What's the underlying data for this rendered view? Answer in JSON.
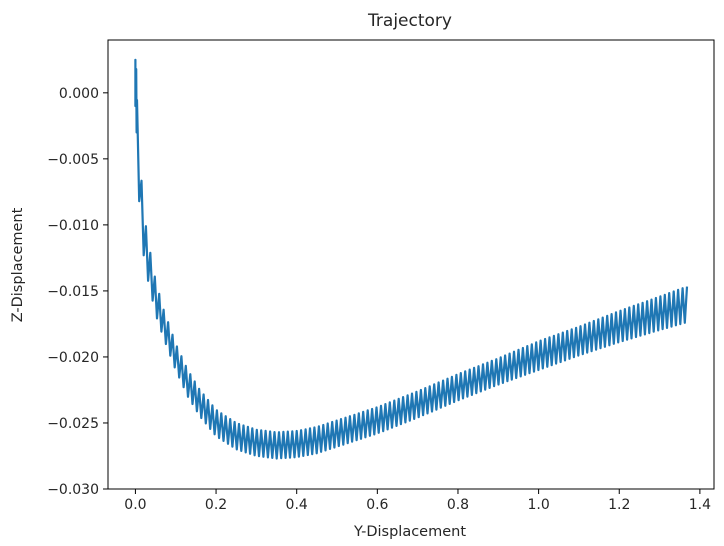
{
  "chart_data": {
    "type": "line",
    "title": "Trajectory",
    "xlabel": "Y-Displacement",
    "ylabel": "Z-Displacement",
    "xlim": [
      -0.068,
      1.435
    ],
    "ylim": [
      -0.03,
      0.004
    ],
    "xticks": [
      0.0,
      0.2,
      0.4,
      0.6,
      0.8,
      1.0,
      1.2,
      1.4
    ],
    "xtick_labels": [
      "0.0",
      "0.2",
      "0.4",
      "0.6",
      "0.8",
      "1.0",
      "1.2",
      "1.4"
    ],
    "yticks": [
      0.0,
      -0.005,
      -0.01,
      -0.015,
      -0.02,
      -0.025,
      -0.03
    ],
    "ytick_labels": [
      "0.000",
      "−0.005",
      "−0.010",
      "−0.015",
      "−0.020",
      "−0.025",
      "−0.030"
    ],
    "grid": false,
    "legend": "none",
    "line_color": "#1f77b4",
    "series": [
      {
        "x": [
          0.0,
          0.005,
          0.01,
          0.02,
          0.03,
          0.05,
          0.07,
          0.1,
          0.13,
          0.16,
          0.2,
          0.25,
          0.3,
          0.35,
          0.4,
          0.45,
          0.5,
          0.6,
          0.7,
          0.8,
          0.9,
          1.0,
          1.1,
          1.2,
          1.3,
          1.37
        ],
        "y": [
          0.0,
          -0.0035,
          -0.0065,
          -0.0105,
          -0.0125,
          -0.0155,
          -0.0175,
          -0.02,
          -0.022,
          -0.0235,
          -0.025,
          -0.026,
          -0.0265,
          -0.0267,
          -0.0266,
          -0.0263,
          -0.0258,
          -0.0248,
          -0.0236,
          -0.0223,
          -0.0211,
          -0.0199,
          -0.0188,
          -0.0177,
          -0.0167,
          -0.016
        ],
        "oscillation_amplitude": [
          0.0025,
          0.0025,
          0.0022,
          0.0019,
          0.0017,
          0.0014,
          0.0012,
          0.0011,
          0.0011,
          0.0011,
          0.0011,
          0.0011,
          0.0011,
          0.0011,
          0.0011,
          0.0011,
          0.0011,
          0.0011,
          0.0011,
          0.0011,
          0.0011,
          0.0012,
          0.0012,
          0.0013,
          0.0014,
          0.0015
        ]
      }
    ]
  }
}
